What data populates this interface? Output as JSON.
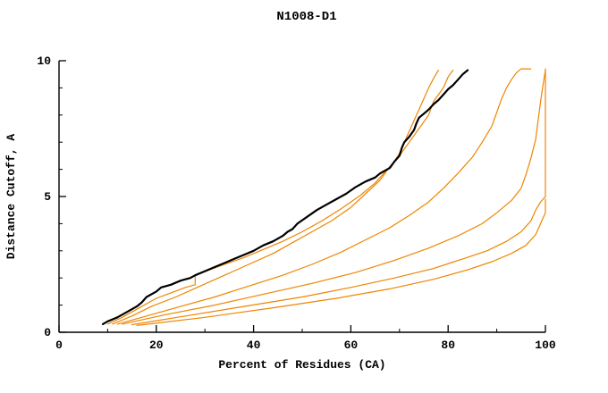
{
  "chart_data": {
    "type": "line",
    "title": "N1008-D1",
    "xlabel": "Percent of Residues (CA)",
    "ylabel": "Distance Cutoff, A",
    "xlim": [
      0,
      100
    ],
    "ylim": [
      0,
      10
    ],
    "x_major_ticks": [
      0,
      20,
      40,
      60,
      80,
      100
    ],
    "x_minor_ticks": [
      10,
      30,
      50,
      70,
      90
    ],
    "y_major_ticks": [
      0,
      5,
      10
    ],
    "y_minor_ticks": [
      1,
      2,
      3,
      4,
      6,
      7,
      8,
      9
    ],
    "grid": false,
    "legend_position": "none",
    "axis_color": "#000000",
    "background": "#ffffff",
    "accent_color": "#ee8500",
    "series": [
      {
        "name": "model-orange-1",
        "color": "#ee8500",
        "width": 1.2,
        "points": [
          [
            10,
            0.3
          ],
          [
            13,
            0.55
          ],
          [
            16,
            0.85
          ],
          [
            18,
            1.05
          ],
          [
            20,
            1.25
          ],
          [
            23,
            1.45
          ],
          [
            26,
            1.65
          ],
          [
            28,
            1.75
          ],
          [
            28,
            2.1
          ],
          [
            31,
            2.3
          ],
          [
            34,
            2.5
          ],
          [
            38,
            2.75
          ],
          [
            42,
            3.05
          ],
          [
            46,
            3.35
          ],
          [
            50,
            3.7
          ],
          [
            54,
            4.1
          ],
          [
            58,
            4.55
          ],
          [
            62,
            5.05
          ],
          [
            65,
            5.5
          ],
          [
            67,
            5.9
          ],
          [
            69,
            6.3
          ],
          [
            70,
            6.6
          ],
          [
            71,
            7.0
          ],
          [
            72,
            7.4
          ],
          [
            73,
            7.8
          ],
          [
            74,
            8.2
          ],
          [
            75,
            8.6
          ],
          [
            76,
            9.0
          ],
          [
            77,
            9.35
          ],
          [
            78,
            9.65
          ]
        ]
      },
      {
        "name": "model-orange-2",
        "color": "#ee8500",
        "width": 1.2,
        "points": [
          [
            11,
            0.3
          ],
          [
            15,
            0.6
          ],
          [
            19,
            0.95
          ],
          [
            24,
            1.3
          ],
          [
            29,
            1.7
          ],
          [
            34,
            2.1
          ],
          [
            39,
            2.5
          ],
          [
            44,
            2.9
          ],
          [
            48,
            3.3
          ],
          [
            52,
            3.7
          ],
          [
            56,
            4.1
          ],
          [
            60,
            4.6
          ],
          [
            63,
            5.1
          ],
          [
            66,
            5.6
          ],
          [
            68,
            6.1
          ],
          [
            70,
            6.5
          ],
          [
            72,
            7.0
          ],
          [
            74,
            7.5
          ],
          [
            76,
            8.0
          ],
          [
            77,
            8.5
          ],
          [
            79,
            9.0
          ],
          [
            80,
            9.4
          ],
          [
            81,
            9.65
          ]
        ]
      },
      {
        "name": "model-orange-3",
        "color": "#ee8500",
        "width": 1.2,
        "points": [
          [
            12,
            0.3
          ],
          [
            18,
            0.6
          ],
          [
            25,
            0.95
          ],
          [
            32,
            1.3
          ],
          [
            39,
            1.7
          ],
          [
            46,
            2.1
          ],
          [
            52,
            2.5
          ],
          [
            58,
            2.95
          ],
          [
            63,
            3.4
          ],
          [
            68,
            3.85
          ],
          [
            72,
            4.3
          ],
          [
            76,
            4.8
          ],
          [
            79,
            5.3
          ],
          [
            82,
            5.85
          ],
          [
            85,
            6.45
          ],
          [
            87,
            7.0
          ],
          [
            89,
            7.6
          ],
          [
            90,
            8.1
          ],
          [
            91,
            8.6
          ],
          [
            92,
            9.0
          ],
          [
            93,
            9.3
          ],
          [
            94,
            9.55
          ],
          [
            95,
            9.7
          ],
          [
            97,
            9.7
          ]
        ]
      },
      {
        "name": "model-orange-4",
        "color": "#ee8500",
        "width": 1.2,
        "points": [
          [
            13,
            0.3
          ],
          [
            22,
            0.65
          ],
          [
            32,
            1.0
          ],
          [
            42,
            1.4
          ],
          [
            52,
            1.8
          ],
          [
            61,
            2.2
          ],
          [
            69,
            2.65
          ],
          [
            76,
            3.1
          ],
          [
            82,
            3.55
          ],
          [
            87,
            4.0
          ],
          [
            90,
            4.4
          ],
          [
            93,
            4.85
          ],
          [
            95,
            5.3
          ],
          [
            96,
            5.8
          ],
          [
            97,
            6.4
          ],
          [
            98,
            7.1
          ],
          [
            98.5,
            7.8
          ],
          [
            99,
            8.5
          ],
          [
            99.5,
            9.1
          ],
          [
            100,
            9.65
          ]
        ]
      },
      {
        "name": "model-orange-5",
        "color": "#ee8500",
        "width": 1.2,
        "points": [
          [
            15,
            0.28
          ],
          [
            26,
            0.6
          ],
          [
            38,
            0.95
          ],
          [
            50,
            1.3
          ],
          [
            60,
            1.65
          ],
          [
            69,
            2.0
          ],
          [
            77,
            2.35
          ],
          [
            83,
            2.7
          ],
          [
            88,
            3.0
          ],
          [
            92,
            3.35
          ],
          [
            95,
            3.7
          ],
          [
            97,
            4.1
          ],
          [
            98,
            4.5
          ],
          [
            99,
            4.8
          ],
          [
            100,
            5.0
          ],
          [
            100,
            9.7
          ]
        ]
      },
      {
        "name": "model-orange-6",
        "color": "#ee8500",
        "width": 1.2,
        "points": [
          [
            16,
            0.25
          ],
          [
            30,
            0.55
          ],
          [
            44,
            0.9
          ],
          [
            57,
            1.25
          ],
          [
            68,
            1.6
          ],
          [
            77,
            1.95
          ],
          [
            84,
            2.3
          ],
          [
            89,
            2.6
          ],
          [
            93,
            2.9
          ],
          [
            96,
            3.2
          ],
          [
            98,
            3.6
          ],
          [
            99,
            4.0
          ],
          [
            100,
            4.4
          ],
          [
            100,
            4.9
          ]
        ]
      },
      {
        "name": "model-black-highlight",
        "color": "#000000",
        "width": 2.2,
        "points": [
          [
            9,
            0.3
          ],
          [
            10,
            0.4
          ],
          [
            12,
            0.55
          ],
          [
            14,
            0.75
          ],
          [
            16,
            0.95
          ],
          [
            17,
            1.1
          ],
          [
            18,
            1.3
          ],
          [
            20,
            1.5
          ],
          [
            21,
            1.65
          ],
          [
            23,
            1.75
          ],
          [
            25,
            1.9
          ],
          [
            27,
            2.0
          ],
          [
            28,
            2.1
          ],
          [
            30,
            2.25
          ],
          [
            32,
            2.4
          ],
          [
            34,
            2.55
          ],
          [
            36,
            2.7
          ],
          [
            38,
            2.85
          ],
          [
            40,
            3.0
          ],
          [
            42,
            3.2
          ],
          [
            44,
            3.35
          ],
          [
            46,
            3.55
          ],
          [
            47,
            3.7
          ],
          [
            48,
            3.8
          ],
          [
            49,
            4.0
          ],
          [
            51,
            4.25
          ],
          [
            53,
            4.5
          ],
          [
            55,
            4.7
          ],
          [
            57,
            4.9
          ],
          [
            59,
            5.1
          ],
          [
            61,
            5.35
          ],
          [
            63,
            5.55
          ],
          [
            65,
            5.7
          ],
          [
            66,
            5.85
          ],
          [
            68,
            6.05
          ],
          [
            69,
            6.3
          ],
          [
            70,
            6.5
          ],
          [
            70.5,
            6.8
          ],
          [
            71,
            7.0
          ],
          [
            72,
            7.2
          ],
          [
            73,
            7.45
          ],
          [
            73.5,
            7.7
          ],
          [
            74,
            7.9
          ],
          [
            75,
            8.05
          ],
          [
            76,
            8.2
          ],
          [
            77,
            8.4
          ],
          [
            78,
            8.55
          ],
          [
            79,
            8.75
          ],
          [
            80,
            8.95
          ],
          [
            81,
            9.1
          ],
          [
            82,
            9.3
          ],
          [
            83,
            9.5
          ],
          [
            84,
            9.65
          ]
        ]
      }
    ]
  }
}
